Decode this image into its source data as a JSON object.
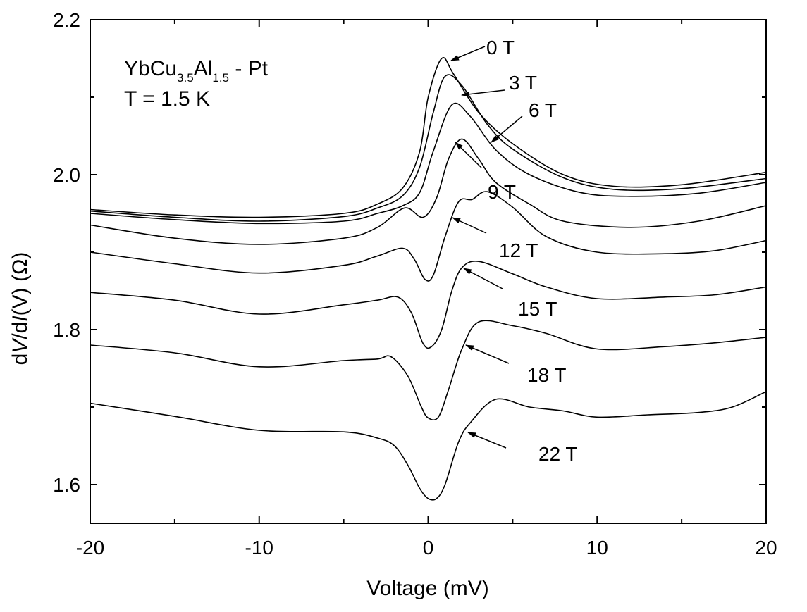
{
  "chart_data": {
    "type": "line",
    "xlabel": "Voltage (mV)",
    "ylabel_parts": [
      "d",
      "V",
      "/d",
      "I",
      "(V)  (Ω)"
    ],
    "xlim": [
      -20,
      20
    ],
    "ylim": [
      1.55,
      2.2
    ],
    "xticks": [
      -20,
      -10,
      0,
      10,
      20
    ],
    "xtick_labels": [
      "-20",
      "-10",
      "0",
      "10",
      "20"
    ],
    "yticks": [
      1.6,
      1.8,
      2.0,
      2.2
    ],
    "ytick_labels": [
      "1.6",
      "1.8",
      "2.0",
      "2.2"
    ],
    "grid": false,
    "annotation": {
      "sample_main": "YbCu",
      "sample_sub1": "3.5",
      "sample_mid": "Al",
      "sample_sub2": "1.5",
      "sample_tail": " - Pt",
      "temperature": "T = 1.5 K"
    },
    "series": [
      {
        "name": "0 T",
        "points": [
          [
            -20,
            1.955
          ],
          [
            -15,
            1.948
          ],
          [
            -10,
            1.945
          ],
          [
            -5,
            1.95
          ],
          [
            -3,
            1.962
          ],
          [
            -1.5,
            1.983
          ],
          [
            -0.5,
            2.03
          ],
          [
            0,
            2.1
          ],
          [
            0.8,
            2.15
          ],
          [
            1.5,
            2.13
          ],
          [
            3,
            2.08
          ],
          [
            5,
            2.04
          ],
          [
            8,
            2.0
          ],
          [
            11,
            1.985
          ],
          [
            15,
            1.987
          ],
          [
            20,
            2.003
          ]
        ]
      },
      {
        "name": "3 T",
        "points": [
          [
            -20,
            1.953
          ],
          [
            -15,
            1.945
          ],
          [
            -10,
            1.94
          ],
          [
            -5,
            1.946
          ],
          [
            -3,
            1.957
          ],
          [
            -1.5,
            1.973
          ],
          [
            -0.5,
            2.01
          ],
          [
            0.3,
            2.08
          ],
          [
            1,
            2.127
          ],
          [
            2,
            2.115
          ],
          [
            3.5,
            2.065
          ],
          [
            5,
            2.033
          ],
          [
            8,
            1.996
          ],
          [
            11,
            1.981
          ],
          [
            15,
            1.982
          ],
          [
            20,
            1.995
          ]
        ]
      },
      {
        "name": "6 T",
        "points": [
          [
            -20,
            1.95
          ],
          [
            -15,
            1.942
          ],
          [
            -10,
            1.937
          ],
          [
            -5,
            1.94
          ],
          [
            -3,
            1.95
          ],
          [
            -1.5,
            1.96
          ],
          [
            -0.5,
            1.977
          ],
          [
            0.3,
            2.03
          ],
          [
            1.4,
            2.09
          ],
          [
            2.5,
            2.075
          ],
          [
            4,
            2.032
          ],
          [
            6,
            2.0
          ],
          [
            9,
            1.977
          ],
          [
            12,
            1.972
          ],
          [
            16,
            1.976
          ],
          [
            20,
            1.99
          ]
        ]
      },
      {
        "name": "9 T",
        "points": [
          [
            -20,
            1.935
          ],
          [
            -15,
            1.918
          ],
          [
            -10,
            1.91
          ],
          [
            -5,
            1.918
          ],
          [
            -3,
            1.932
          ],
          [
            -1.4,
            1.957
          ],
          [
            -0.3,
            1.945
          ],
          [
            0.5,
            1.97
          ],
          [
            1.2,
            2.02
          ],
          [
            2,
            2.046
          ],
          [
            3,
            2.02
          ],
          [
            4,
            1.99
          ],
          [
            6,
            1.962
          ],
          [
            8,
            1.94
          ],
          [
            12,
            1.932
          ],
          [
            16,
            1.94
          ],
          [
            20,
            1.96
          ]
        ]
      },
      {
        "name": "12 T",
        "points": [
          [
            -20,
            1.9
          ],
          [
            -15,
            1.885
          ],
          [
            -10,
            1.873
          ],
          [
            -5,
            1.883
          ],
          [
            -3,
            1.895
          ],
          [
            -1.5,
            1.905
          ],
          [
            -0.8,
            1.89
          ],
          [
            -0.2,
            1.865
          ],
          [
            0.3,
            1.87
          ],
          [
            1,
            1.92
          ],
          [
            1.8,
            1.965
          ],
          [
            2.6,
            1.968
          ],
          [
            3.5,
            1.978
          ],
          [
            5,
            1.958
          ],
          [
            7,
            1.92
          ],
          [
            10,
            1.9
          ],
          [
            14,
            1.898
          ],
          [
            17,
            1.902
          ],
          [
            20,
            1.915
          ]
        ]
      },
      {
        "name": "15 T",
        "points": [
          [
            -20,
            1.848
          ],
          [
            -15,
            1.838
          ],
          [
            -10,
            1.82
          ],
          [
            -5,
            1.832
          ],
          [
            -3,
            1.838
          ],
          [
            -1.8,
            1.842
          ],
          [
            -1,
            1.822
          ],
          [
            -0.3,
            1.782
          ],
          [
            0.2,
            1.778
          ],
          [
            0.8,
            1.8
          ],
          [
            1.4,
            1.85
          ],
          [
            2,
            1.88
          ],
          [
            3,
            1.888
          ],
          [
            5,
            1.872
          ],
          [
            7,
            1.855
          ],
          [
            10,
            1.84
          ],
          [
            14,
            1.842
          ],
          [
            17,
            1.845
          ],
          [
            20,
            1.855
          ]
        ]
      },
      {
        "name": "18 T",
        "points": [
          [
            -20,
            1.78
          ],
          [
            -15,
            1.77
          ],
          [
            -10,
            1.752
          ],
          [
            -5,
            1.76
          ],
          [
            -3,
            1.762
          ],
          [
            -2.2,
            1.765
          ],
          [
            -1.2,
            1.74
          ],
          [
            -0.4,
            1.7
          ],
          [
            0,
            1.686
          ],
          [
            0.6,
            1.687
          ],
          [
            1.2,
            1.722
          ],
          [
            2,
            1.775
          ],
          [
            3,
            1.81
          ],
          [
            5,
            1.805
          ],
          [
            7,
            1.795
          ],
          [
            10,
            1.775
          ],
          [
            14,
            1.778
          ],
          [
            17,
            1.783
          ],
          [
            20,
            1.79
          ]
        ]
      },
      {
        "name": "22 T",
        "points": [
          [
            -20,
            1.705
          ],
          [
            -15,
            1.688
          ],
          [
            -10,
            1.67
          ],
          [
            -5,
            1.668
          ],
          [
            -3,
            1.66
          ],
          [
            -2,
            1.65
          ],
          [
            -1.2,
            1.625
          ],
          [
            -0.5,
            1.595
          ],
          [
            0,
            1.582
          ],
          [
            0.5,
            1.582
          ],
          [
            1,
            1.6
          ],
          [
            1.8,
            1.655
          ],
          [
            2.5,
            1.68
          ],
          [
            4,
            1.71
          ],
          [
            6,
            1.7
          ],
          [
            8,
            1.695
          ],
          [
            10,
            1.687
          ],
          [
            13,
            1.69
          ],
          [
            16,
            1.693
          ],
          [
            18,
            1.7
          ],
          [
            20,
            1.72
          ]
        ]
      }
    ]
  }
}
